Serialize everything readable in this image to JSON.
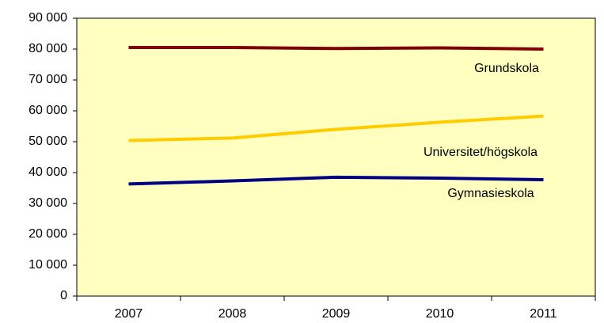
{
  "chart_data": {
    "type": "line",
    "categories": [
      "2007",
      "2008",
      "2009",
      "2010",
      "2011"
    ],
    "series": [
      {
        "name": "Grundskola",
        "color": "#800000",
        "values": [
          80500,
          80500,
          80200,
          80400,
          80000
        ]
      },
      {
        "name": "Universitet/högskola",
        "color": "#ffcc00",
        "values": [
          50400,
          51200,
          54000,
          56300,
          58300
        ]
      },
      {
        "name": "Gymnasieskola",
        "color": "#000080",
        "values": [
          36300,
          37300,
          38500,
          38200,
          37700
        ]
      }
    ],
    "ylim": [
      0,
      90000
    ],
    "yticks": [
      {
        "value": 0,
        "label": "0"
      },
      {
        "value": 10000,
        "label": "10 000"
      },
      {
        "value": 20000,
        "label": "20 000"
      },
      {
        "value": 30000,
        "label": "30 000"
      },
      {
        "value": 40000,
        "label": "40 000"
      },
      {
        "value": 50000,
        "label": "50 000"
      },
      {
        "value": 60000,
        "label": "60 000"
      },
      {
        "value": 70000,
        "label": "70 000"
      },
      {
        "value": 80000,
        "label": "80 000"
      },
      {
        "value": 90000,
        "label": "90 000"
      }
    ],
    "background": "#ffffc0"
  }
}
